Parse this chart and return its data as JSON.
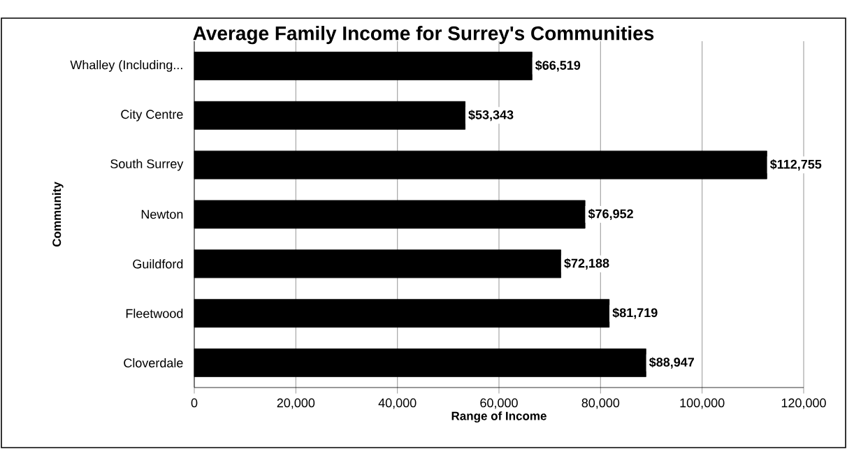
{
  "chart_data": {
    "type": "bar",
    "orientation": "horizontal",
    "title": "Average Family Income for Surrey's Communities",
    "xlabel": "Range of Income",
    "ylabel": "Community",
    "categories": [
      "Whalley (Including...",
      "City Centre",
      "South Surrey",
      "Newton",
      "Guildford",
      "Fleetwood",
      "Cloverdale"
    ],
    "values": [
      66519,
      53343,
      112755,
      76952,
      72188,
      81719,
      88947
    ],
    "value_labels": [
      "$66,519",
      "$53,343",
      "$112,755",
      "$76,952",
      "$72,188",
      "$81,719",
      "$88,947"
    ],
    "color": "#000000",
    "xlim": [
      0,
      120000
    ],
    "xticks": [
      0,
      {
        "value": 20000,
        "label": "20,000"
      },
      {
        "value": 40000,
        "label": "40,000"
      },
      {
        "value": 60000,
        "label": "60,000"
      },
      {
        "value": 80000,
        "label": "80,000"
      },
      {
        "value": 100000,
        "label": "100,000"
      },
      {
        "value": 120000,
        "label": "120,000"
      }
    ],
    "grid": "x"
  }
}
